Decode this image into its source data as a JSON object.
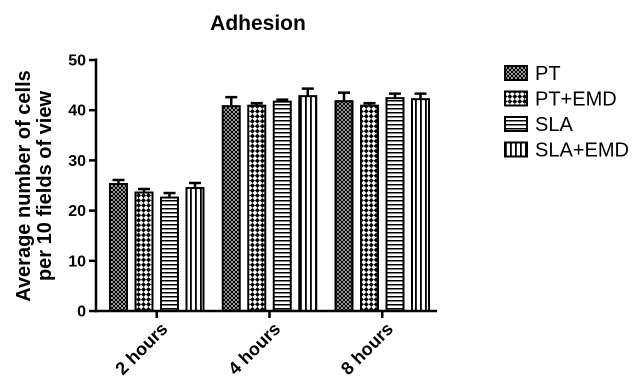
{
  "chart_data": {
    "type": "bar",
    "title": "Adhesion",
    "xlabel": "",
    "ylabel": [
      "Average number of cells",
      "per 10 fields of view"
    ],
    "categories": [
      "2 hours",
      "4 hours",
      "8 hours"
    ],
    "ylim": [
      0,
      50
    ],
    "yticks": [
      0,
      10,
      20,
      30,
      40,
      50
    ],
    "grid": false,
    "legend_position": "right",
    "series": [
      {
        "name": "PT",
        "fill": "fine-crosshatch",
        "values": [
          25.3,
          40.8,
          41.8
        ],
        "errors": [
          0.8,
          1.8,
          1.7
        ]
      },
      {
        "name": "PT+EMD",
        "fill": "checkerboard",
        "values": [
          23.6,
          40.9,
          40.9
        ],
        "errors": [
          0.7,
          0.5,
          0.5
        ]
      },
      {
        "name": "SLA",
        "fill": "horizontal-stripes",
        "values": [
          22.6,
          41.7,
          42.4
        ],
        "errors": [
          0.9,
          0.4,
          0.9
        ]
      },
      {
        "name": "SLA+EMD",
        "fill": "vertical-stripes",
        "values": [
          24.5,
          42.8,
          42.2
        ],
        "errors": [
          1.0,
          1.5,
          1.1
        ]
      }
    ]
  },
  "colors": {
    "ink": "#000000",
    "background": "#ffffff"
  }
}
